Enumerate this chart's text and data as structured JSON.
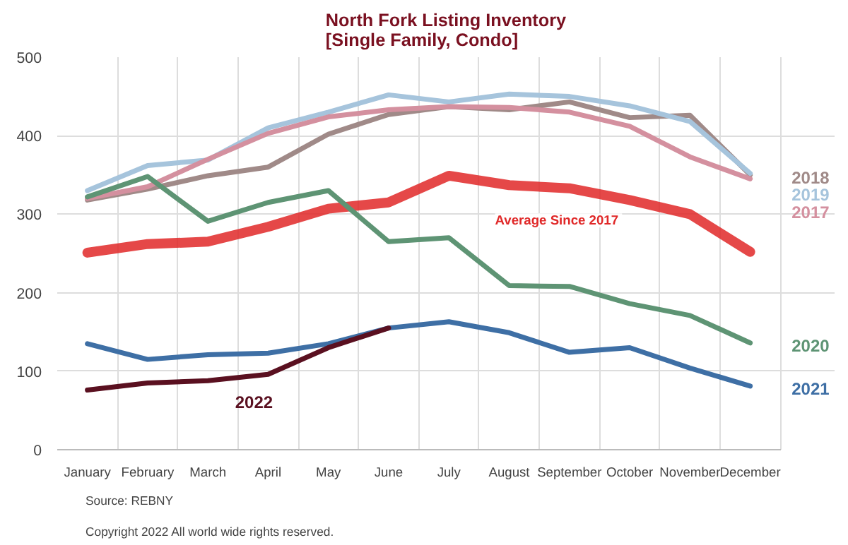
{
  "chart_data": {
    "type": "line",
    "title": "North Fork Listing Inventory\n[Single Family, Condo]",
    "categories": [
      "January",
      "February",
      "March",
      "April",
      "May",
      "June",
      "July",
      "August",
      "September",
      "October",
      "November",
      "December"
    ],
    "ylim": [
      0,
      500
    ],
    "yticks": [
      0,
      100,
      200,
      300,
      400,
      500
    ],
    "grid": true,
    "legend": false,
    "series": [
      {
        "name": "2018",
        "color": "#a08a88",
        "values": [
          318,
          332,
          349,
          360,
          402,
          427,
          437,
          433,
          443,
          423,
          426,
          350
        ]
      },
      {
        "name": "2019",
        "color": "#a6c4dc",
        "values": [
          330,
          362,
          369,
          410,
          430,
          452,
          443,
          453,
          450,
          438,
          418,
          352
        ]
      },
      {
        "name": "2017",
        "color": "#d4909f",
        "values": [
          320,
          335,
          370,
          403,
          424,
          433,
          437,
          436,
          430,
          412,
          373,
          345
        ]
      },
      {
        "name": "Average  Since 2017",
        "color": "#e02828",
        "values": [
          251,
          262,
          265,
          284,
          307,
          315,
          349,
          337,
          333,
          318,
          300,
          252
        ]
      },
      {
        "name": "2020",
        "color": "#5e9474",
        "values": [
          322,
          348,
          291,
          315,
          330,
          265,
          270,
          209,
          208,
          186,
          171,
          136
        ]
      },
      {
        "name": "2021",
        "color": "#3e6fa5",
        "values": [
          135,
          115,
          121,
          123,
          135,
          155,
          163,
          149,
          124,
          130,
          104,
          81
        ]
      },
      {
        "name": "2022",
        "color": "#5a1020",
        "values": [
          76,
          85,
          88,
          96,
          130,
          155,
          null,
          null,
          null,
          null,
          null,
          null
        ]
      }
    ],
    "annotations": [
      "Source: REBNY",
      "Copyright 2022  All world wide rights reserved."
    ]
  }
}
